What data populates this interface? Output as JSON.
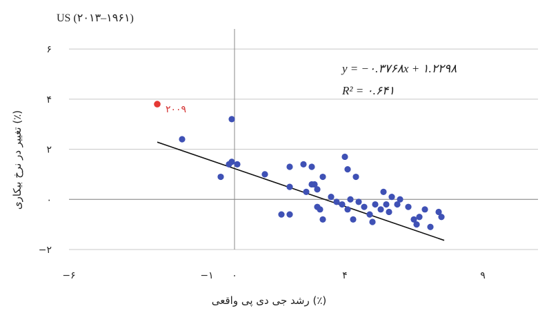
{
  "chart_data": {
    "type": "scatter",
    "title": "US (۲۰۱۳–۱۹۶۱)",
    "xlabel": "رشد جی دی پی واقعی (٪)",
    "ylabel": "تغییر در نرخ بیکاری (٪)",
    "xlim": [
      -6,
      11
    ],
    "ylim": [
      -2,
      6.8
    ],
    "x_ticks": [
      {
        "value": -6,
        "label": "−۶"
      },
      {
        "value": -1,
        "label": "−۱"
      },
      {
        "value": 0,
        "label": "۰"
      },
      {
        "value": 4,
        "label": "۴"
      },
      {
        "value": 9,
        "label": "۹"
      }
    ],
    "y_ticks": [
      {
        "value": -2,
        "label": "−۲"
      },
      {
        "value": 0,
        "label": "۰"
      },
      {
        "value": 2,
        "label": "۲"
      },
      {
        "value": 4,
        "label": "۴"
      },
      {
        "value": 6,
        "label": "۶"
      }
    ],
    "grid": "horizontal",
    "equation_text": "y = −۰.۳۷۶۸x + ۱.۲۲۹۸",
    "r2_text": "R² = ۰.۶۴۱",
    "trendline": {
      "slope": -0.3768,
      "intercept": 1.2298,
      "x_range": [
        -2.8,
        7.6
      ]
    },
    "highlight": {
      "x": -2.8,
      "y": 3.8,
      "label": "۲۰۰۹",
      "color": "#e53935"
    },
    "series": [
      {
        "color": "#3f51b5",
        "points": [
          [
            -1.9,
            2.4
          ],
          [
            -0.1,
            3.2
          ],
          [
            -0.1,
            1.5
          ],
          [
            -0.2,
            1.4
          ],
          [
            -0.5,
            0.9
          ],
          [
            0.1,
            1.4
          ],
          [
            1.1,
            1.0
          ],
          [
            2.0,
            1.3
          ],
          [
            2.5,
            1.4
          ],
          [
            2.8,
            1.3
          ],
          [
            2.9,
            0.6
          ],
          [
            3.2,
            0.9
          ],
          [
            4.0,
            1.7
          ],
          [
            4.1,
            1.2
          ],
          [
            4.4,
            0.9
          ],
          [
            2.0,
            0.5
          ],
          [
            1.7,
            -0.6
          ],
          [
            2.0,
            -0.6
          ],
          [
            2.6,
            0.3
          ],
          [
            2.8,
            0.6
          ],
          [
            3.0,
            0.4
          ],
          [
            3.0,
            -0.3
          ],
          [
            3.1,
            -0.4
          ],
          [
            3.2,
            -0.8
          ],
          [
            3.5,
            0.1
          ],
          [
            3.7,
            -0.1
          ],
          [
            3.9,
            -0.2
          ],
          [
            4.1,
            -0.4
          ],
          [
            4.3,
            -0.8
          ],
          [
            4.5,
            -0.1
          ],
          [
            4.7,
            -0.3
          ],
          [
            4.9,
            -0.6
          ],
          [
            5.0,
            -0.9
          ],
          [
            5.1,
            -0.2
          ],
          [
            5.3,
            -0.4
          ],
          [
            5.4,
            0.3
          ],
          [
            5.5,
            -0.2
          ],
          [
            5.6,
            -0.5
          ],
          [
            5.7,
            0.1
          ],
          [
            5.9,
            -0.2
          ],
          [
            6.0,
            0.0
          ],
          [
            6.3,
            -0.3
          ],
          [
            6.5,
            -0.8
          ],
          [
            6.6,
            -1.0
          ],
          [
            6.7,
            -0.7
          ],
          [
            6.9,
            -0.4
          ],
          [
            7.1,
            -1.1
          ],
          [
            7.4,
            -0.5
          ],
          [
            7.5,
            -0.7
          ],
          [
            4.2,
            0.0
          ]
        ]
      }
    ]
  }
}
